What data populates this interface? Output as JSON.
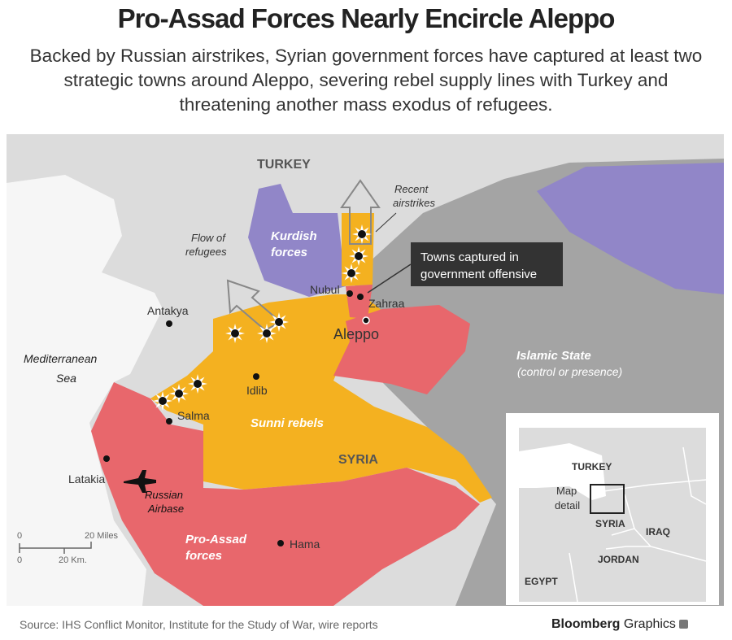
{
  "title": "Pro-Assad Forces Nearly Encircle Aleppo",
  "subtitle": "Backed by Russian airstrikes, Syrian government forces have captured at least two strategic towns around Aleppo, severing rebel supply lines with Turkey and threatening another mass exodus of refugees.",
  "colors": {
    "pro_assad": "#e8676c",
    "sunni_rebels": "#f4b120",
    "kurdish": "#9186c8",
    "islamic_state": "#a4a4a4",
    "land": "#dcdcdc",
    "sea": "#f6f6f6"
  },
  "map": {
    "country_labels": {
      "turkey": "TURKEY",
      "syria": "SYRIA",
      "sea_line1": "Mediterranean",
      "sea_line2": "Sea"
    },
    "regions": {
      "kurdish_1": "Kurdish",
      "kurdish_2": "forces",
      "rebels": "Sunni rebels",
      "assad_1": "Pro-Assad",
      "assad_2": "forces",
      "is_1": "Islamic State",
      "is_2": "(control or presence)"
    },
    "cities": [
      "Antakya",
      "Idlib",
      "Salma",
      "Latakia",
      "Hama",
      "Nubul",
      "Zahraa",
      "Aleppo"
    ],
    "annotations": {
      "refugees_1": "Flow of",
      "refugees_2": "refugees",
      "airstrikes_1": "Recent",
      "airstrikes_2": "airstrikes",
      "callout_1": "Towns captured in",
      "callout_2": "government offensive",
      "airbase_1": "Russian",
      "airbase_2": "Airbase"
    },
    "airbase_icon": "airplane-icon",
    "airstrike_icon": "explosion-icon",
    "scale": {
      "miles_zero": "0",
      "miles": "20 Miles",
      "km_zero": "0",
      "km": "20 Km."
    }
  },
  "inset": {
    "turkey": "TURKEY",
    "syria": "SYRIA",
    "iraq": "IRAQ",
    "jordan": "JORDAN",
    "egypt": "EGYPT",
    "detail_1": "Map",
    "detail_2": "detail"
  },
  "footer": {
    "source": "Source: IHS Conflict Monitor, Institute for the Study of War, wire reports",
    "brand_bold": "Bloomberg",
    "brand": "Graphics"
  }
}
